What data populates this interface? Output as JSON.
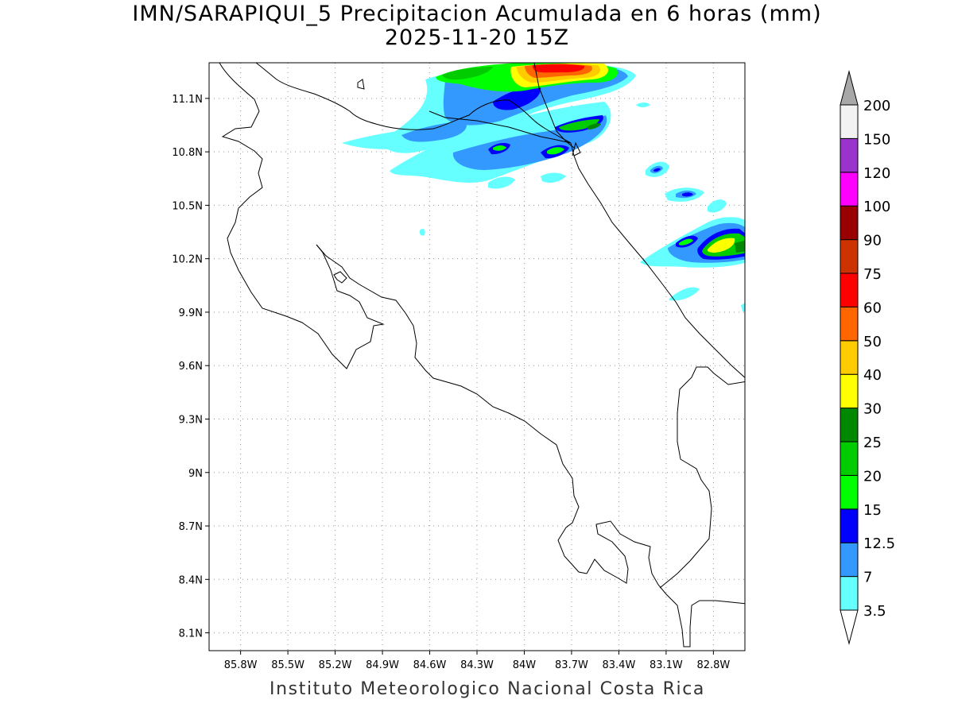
{
  "title": "IMN/SARAPIQUI_5 Precipitacion Acumulada en 6 horas (mm)",
  "subtitle": "2025-11-20 15Z",
  "footer": "Instituto Meteorologico Nacional Costa Rica",
  "map": {
    "lon_range": [
      -86.0,
      -82.6
    ],
    "lat_range": [
      8.0,
      11.3
    ],
    "lat_ticks": [
      {
        "value": 11.1,
        "label": "11.1N"
      },
      {
        "value": 10.8,
        "label": "10.8N"
      },
      {
        "value": 10.5,
        "label": "10.5N"
      },
      {
        "value": 10.2,
        "label": "10.2N"
      },
      {
        "value": 9.9,
        "label": "9.9N"
      },
      {
        "value": 9.6,
        "label": "9.6N"
      },
      {
        "value": 9.3,
        "label": "9.3N"
      },
      {
        "value": 9.0,
        "label": "9N"
      },
      {
        "value": 8.7,
        "label": "8.7N"
      },
      {
        "value": 8.4,
        "label": "8.4N"
      },
      {
        "value": 8.1,
        "label": "8.1N"
      }
    ],
    "lon_ticks": [
      {
        "value": -85.8,
        "label": "85.8W"
      },
      {
        "value": -85.5,
        "label": "85.5W"
      },
      {
        "value": -85.2,
        "label": "85.2W"
      },
      {
        "value": -84.9,
        "label": "84.9W"
      },
      {
        "value": -84.6,
        "label": "84.6W"
      },
      {
        "value": -84.3,
        "label": "84.3W"
      },
      {
        "value": -84.0,
        "label": "84W"
      },
      {
        "value": -83.7,
        "label": "83.7W"
      },
      {
        "value": -83.4,
        "label": "83.4W"
      },
      {
        "value": -83.1,
        "label": "83.1W"
      },
      {
        "value": -82.8,
        "label": "82.8W"
      }
    ],
    "grid": "dotted"
  },
  "colorbar": {
    "unit": "mm",
    "levels": [
      {
        "label": "3.5",
        "color": "#ffffff"
      },
      {
        "label": "7",
        "color": "#66ffff"
      },
      {
        "label": "12.5",
        "color": "#3399ff"
      },
      {
        "label": "15",
        "color": "#0000ff"
      },
      {
        "label": "20",
        "color": "#00ff00"
      },
      {
        "label": "25",
        "color": "#00cc00"
      },
      {
        "label": "30",
        "color": "#008800"
      },
      {
        "label": "40",
        "color": "#ffff00"
      },
      {
        "label": "50",
        "color": "#ffcc00"
      },
      {
        "label": "60",
        "color": "#ff6600"
      },
      {
        "label": "75",
        "color": "#ff0000"
      },
      {
        "label": "90",
        "color": "#cc3300"
      },
      {
        "label": "100",
        "color": "#990000"
      },
      {
        "label": "120",
        "color": "#ff00ff"
      },
      {
        "label": "150",
        "color": "#9933cc"
      },
      {
        "label": "200",
        "color": "#f2f2f2"
      }
    ],
    "over_color": "#a8a8a8",
    "under_color": "#ffffff"
  }
}
